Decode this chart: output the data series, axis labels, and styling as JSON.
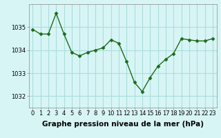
{
  "x": [
    0,
    1,
    2,
    3,
    4,
    5,
    6,
    7,
    8,
    9,
    10,
    11,
    12,
    13,
    14,
    15,
    16,
    17,
    18,
    19,
    20,
    21,
    22,
    23
  ],
  "y": [
    1034.9,
    1034.7,
    1034.7,
    1035.6,
    1034.7,
    1033.9,
    1033.75,
    1033.9,
    1034.0,
    1034.1,
    1034.45,
    1034.3,
    1033.5,
    1032.6,
    1032.2,
    1032.8,
    1033.3,
    1033.6,
    1033.85,
    1034.5,
    1034.45,
    1034.4,
    1034.4,
    1034.5
  ],
  "line_color": "#1a6b1a",
  "marker": "D",
  "marker_size": 2.5,
  "bg_color": "#d8f5f5",
  "grid_color": "#aadddd",
  "xlabel": "Graphe pression niveau de la mer (hPa)",
  "ylim": [
    1031.5,
    1036.0
  ],
  "yticks": [
    1032,
    1033,
    1034,
    1035
  ],
  "xlim": [
    -0.5,
    23.5
  ],
  "xticks": [
    0,
    1,
    2,
    3,
    4,
    5,
    6,
    7,
    8,
    9,
    10,
    11,
    12,
    13,
    14,
    15,
    16,
    17,
    18,
    19,
    20,
    21,
    22,
    23
  ],
  "xlabel_fontsize": 7.5,
  "tick_fontsize": 6,
  "xlabel_fontweight": "bold"
}
